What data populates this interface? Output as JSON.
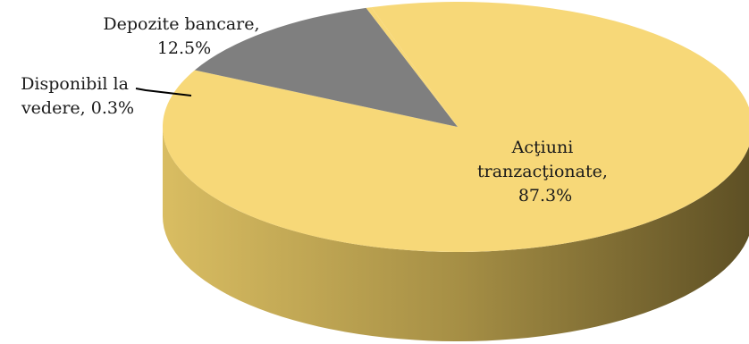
{
  "chart_data": {
    "type": "pie",
    "style": "3d",
    "slices": [
      {
        "name": "Acţiuni tranzacţionate",
        "value": 87.3,
        "color": "#f7d878"
      },
      {
        "name": "Depozite bancare",
        "value": 12.5,
        "color": "#7f7f7f"
      },
      {
        "name": "Disponibil la vedere",
        "value": 0.3,
        "color": "#f7d878"
      }
    ],
    "labels": {
      "main": [
        "Acţiuni",
        "tranzacţionate,",
        "87.3%"
      ],
      "deposits": [
        "Depozite bancare,",
        "12.5%"
      ],
      "cash": [
        "Disponibil la",
        "vedere, 0.3%"
      ]
    }
  }
}
